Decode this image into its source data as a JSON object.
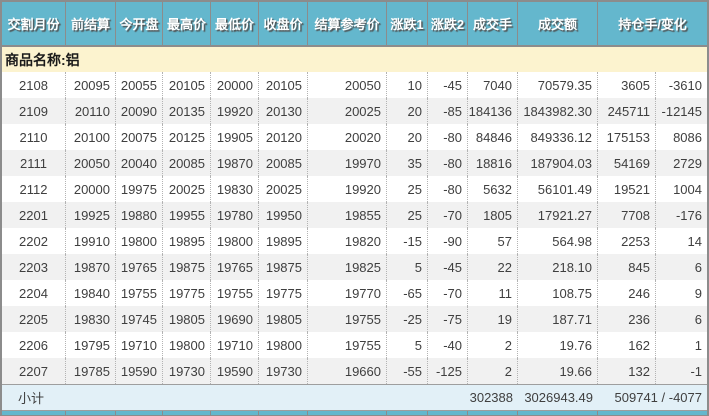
{
  "table": {
    "headers": [
      "交割月份",
      "前结算",
      "今开盘",
      "最高价",
      "最低价",
      "收盘价",
      "结算参考价",
      "涨跌1",
      "涨跌2",
      "成交手",
      "成交额",
      "持仓手/变化"
    ],
    "product_label": "商品名称:铝",
    "rows": [
      [
        "2108",
        "20095",
        "20055",
        "20105",
        "20000",
        "20105",
        "20050",
        "10",
        "-45",
        "7040",
        "70579.35",
        "3605",
        "-3610"
      ],
      [
        "2109",
        "20110",
        "20090",
        "20135",
        "19920",
        "20130",
        "20025",
        "20",
        "-85",
        "184136",
        "1843982.30",
        "245711",
        "-12145"
      ],
      [
        "2110",
        "20100",
        "20075",
        "20125",
        "19905",
        "20120",
        "20020",
        "20",
        "-80",
        "84846",
        "849336.12",
        "175153",
        "8086"
      ],
      [
        "2111",
        "20050",
        "20040",
        "20085",
        "19870",
        "20085",
        "19970",
        "35",
        "-80",
        "18816",
        "187904.03",
        "54169",
        "2729"
      ],
      [
        "2112",
        "20000",
        "19975",
        "20025",
        "19830",
        "20025",
        "19920",
        "25",
        "-80",
        "5632",
        "56101.49",
        "19521",
        "1004"
      ],
      [
        "2201",
        "19925",
        "19880",
        "19955",
        "19780",
        "19950",
        "19855",
        "25",
        "-70",
        "1805",
        "17921.27",
        "7708",
        "-176"
      ],
      [
        "2202",
        "19910",
        "19800",
        "19895",
        "19800",
        "19895",
        "19820",
        "-15",
        "-90",
        "57",
        "564.98",
        "2253",
        "14"
      ],
      [
        "2203",
        "19870",
        "19765",
        "19875",
        "19765",
        "19875",
        "19825",
        "5",
        "-45",
        "22",
        "218.10",
        "845",
        "6"
      ],
      [
        "2204",
        "19840",
        "19755",
        "19775",
        "19755",
        "19775",
        "19770",
        "-65",
        "-70",
        "11",
        "108.75",
        "246",
        "9"
      ],
      [
        "2205",
        "19830",
        "19745",
        "19805",
        "19690",
        "19805",
        "19755",
        "-25",
        "-75",
        "19",
        "187.71",
        "236",
        "6"
      ],
      [
        "2206",
        "19795",
        "19710",
        "19800",
        "19710",
        "19800",
        "19755",
        "5",
        "-40",
        "2",
        "19.76",
        "162",
        "1"
      ],
      [
        "2207",
        "19785",
        "19590",
        "19730",
        "19590",
        "19730",
        "19660",
        "-55",
        "-125",
        "2",
        "19.66",
        "132",
        "-1"
      ]
    ],
    "subtotal": {
      "label": "小计",
      "volume": "302388",
      "turnover": "3026943.49",
      "open_interest_change": "509741 / -4077"
    }
  },
  "colors": {
    "header_bg": "#64B7CD",
    "header_text": "#FFFFFF",
    "product_bg": "#FCF3CF",
    "row_bg": "#FFFFFF",
    "row_alt_bg": "#F1F1F1",
    "subtotal_bg": "#E2F0F7",
    "border": "#8C8C8C",
    "text": "#3F3F3F"
  }
}
